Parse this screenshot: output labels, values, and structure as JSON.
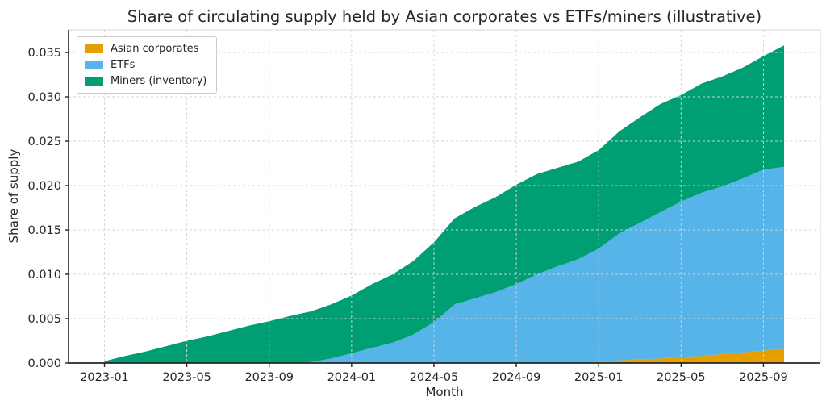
{
  "chart_data": {
    "type": "area",
    "stacked": true,
    "title": "Share of circulating supply held by Asian corporates vs ETFs/miners (illustrative)",
    "xlabel": "Month",
    "ylabel": "Share of supply",
    "x": [
      "2023-01",
      "2023-02",
      "2023-03",
      "2023-04",
      "2023-05",
      "2023-06",
      "2023-07",
      "2023-08",
      "2023-09",
      "2023-10",
      "2023-11",
      "2023-12",
      "2024-01",
      "2024-02",
      "2024-03",
      "2024-04",
      "2024-05",
      "2024-06",
      "2024-07",
      "2024-08",
      "2024-09",
      "2024-10",
      "2024-11",
      "2024-12",
      "2025-01",
      "2025-02",
      "2025-03",
      "2025-04",
      "2025-05",
      "2025-06",
      "2025-07",
      "2025-08",
      "2025-09",
      "2025-10"
    ],
    "series": [
      {
        "name": "Asian corporates",
        "color": "#E69F00",
        "values": [
          0,
          0,
          0,
          0,
          0,
          0,
          0,
          0,
          0,
          0,
          0,
          0,
          0,
          0,
          0,
          0,
          0,
          0,
          0,
          0,
          0,
          0,
          0,
          0,
          0.0001,
          0.0003,
          0.0004,
          0.0005,
          0.0007,
          0.0008,
          0.001,
          0.0012,
          0.0014,
          0.0016
        ]
      },
      {
        "name": "ETFs",
        "color": "#56B4E9",
        "values": [
          0,
          0,
          0,
          0,
          0,
          0,
          0,
          0,
          0,
          0,
          0.0001,
          0.0005,
          0.0011,
          0.0017,
          0.0023,
          0.0032,
          0.0046,
          0.0066,
          0.0073,
          0.008,
          0.0089,
          0.01,
          0.0109,
          0.0117,
          0.0128,
          0.0143,
          0.0154,
          0.0165,
          0.0175,
          0.0184,
          0.0189,
          0.0196,
          0.0204,
          0.0205
        ]
      },
      {
        "name": "Miners (inventory)",
        "color": "#009E73",
        "values": [
          0.0002,
          0.0008,
          0.0013,
          0.0019,
          0.0025,
          0.003,
          0.0036,
          0.0042,
          0.0047,
          0.0053,
          0.0057,
          0.0061,
          0.0065,
          0.0072,
          0.0077,
          0.0083,
          0.009,
          0.0097,
          0.0103,
          0.0107,
          0.0112,
          0.0113,
          0.0111,
          0.011,
          0.0111,
          0.0115,
          0.0119,
          0.0122,
          0.012,
          0.0123,
          0.0124,
          0.0125,
          0.0128,
          0.0137
        ]
      }
    ],
    "x_ticks": [
      {
        "index": 0,
        "label": "2023-01"
      },
      {
        "index": 4,
        "label": "2023-05"
      },
      {
        "index": 8,
        "label": "2023-09"
      },
      {
        "index": 12,
        "label": "2024-01"
      },
      {
        "index": 16,
        "label": "2024-05"
      },
      {
        "index": 20,
        "label": "2024-09"
      },
      {
        "index": 24,
        "label": "2025-01"
      },
      {
        "index": 28,
        "label": "2025-05"
      },
      {
        "index": 32,
        "label": "2025-09"
      }
    ],
    "y_ticks": [
      {
        "value": 0.0,
        "label": "0.000"
      },
      {
        "value": 0.005,
        "label": "0.005"
      },
      {
        "value": 0.01,
        "label": "0.010"
      },
      {
        "value": 0.015,
        "label": "0.015"
      },
      {
        "value": 0.02,
        "label": "0.020"
      },
      {
        "value": 0.025,
        "label": "0.025"
      },
      {
        "value": 0.03,
        "label": "0.030"
      },
      {
        "value": 0.035,
        "label": "0.035"
      }
    ],
    "ylim": [
      0,
      0.03755
    ],
    "grid": true,
    "grid_style": "dashed",
    "grid_color": "#d4d4d4",
    "axis_color": "#262626",
    "text_color": "#262626",
    "background": "#ffffff",
    "legend_position": "upper left"
  }
}
